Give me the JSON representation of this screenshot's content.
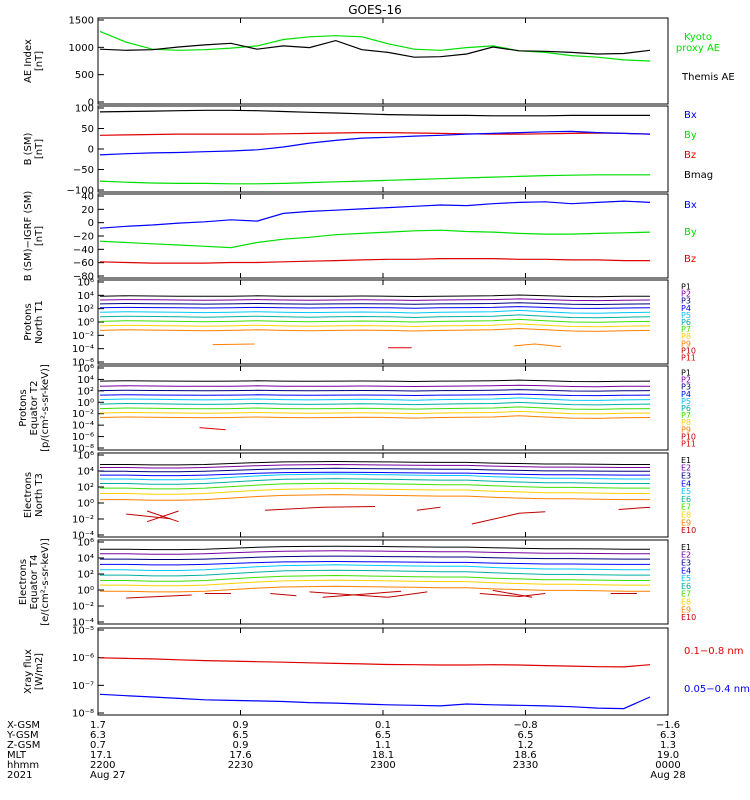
{
  "title": "GOES-16",
  "colors": {
    "black": "#000000",
    "green": "#00e000",
    "blue": "#0000ff",
    "red": "#e00000",
    "purple": "#7a00a0",
    "navy": "#000080",
    "cyan": "#00c8ff",
    "teal": "#00b0a0",
    "lime": "#40e000",
    "yellow": "#ffd000",
    "orange": "#ff8000",
    "darkred": "#c00000"
  },
  "chart_data": [
    {
      "type": "line",
      "id": "ae",
      "ylabel": "AE Index\n[nT]",
      "yticks": [
        "1500",
        "1000",
        "500",
        "0"
      ],
      "ylim": [
        0,
        1600
      ],
      "legend": [
        "Kyoto\nproxy AE",
        "Themis AE"
      ],
      "series": [
        {
          "name": "Kyoto proxy AE",
          "color": "green",
          "values": [
            1350,
            1150,
            1020,
            1000,
            1010,
            1040,
            1080,
            1200,
            1250,
            1270,
            1250,
            1120,
            1020,
            1000,
            1050,
            1080,
            990,
            960,
            900,
            870,
            820,
            800
          ]
        },
        {
          "name": "Themis AE",
          "color": "black",
          "values": [
            1020,
            1000,
            1010,
            1060,
            1100,
            1130,
            1020,
            1080,
            1050,
            1180,
            1010,
            960,
            870,
            880,
            930,
            1060,
            990,
            980,
            960,
            930,
            940,
            1000
          ]
        }
      ]
    },
    {
      "type": "line",
      "id": "bsm",
      "ylabel": "B (SM)\n[nT]",
      "yticks": [
        "100",
        "50",
        "0",
        "−50",
        "−100"
      ],
      "ylim": [
        -110,
        110
      ],
      "legend": [
        "Bx",
        "By",
        "Bz",
        "Bmag"
      ],
      "series": [
        {
          "name": "Bmag",
          "color": "black",
          "values": [
            95,
            96,
            97,
            98,
            99,
            99,
            98,
            96,
            94,
            92,
            90,
            88,
            87,
            86,
            86,
            85,
            85,
            85,
            86,
            86,
            86,
            86
          ]
        },
        {
          "name": "Bz",
          "color": "red",
          "values": [
            35,
            36,
            37,
            38,
            38,
            38,
            38,
            39,
            40,
            41,
            42,
            42,
            41,
            40,
            39,
            38,
            38,
            39,
            40,
            41,
            40,
            38
          ]
        },
        {
          "name": "Bx",
          "color": "blue",
          "values": [
            -15,
            -12,
            -10,
            -9,
            -7,
            -5,
            -2,
            5,
            15,
            22,
            28,
            30,
            33,
            35,
            38,
            40,
            42,
            44,
            45,
            42,
            40,
            38
          ]
        },
        {
          "name": "By",
          "color": "green",
          "values": [
            -82,
            -85,
            -87,
            -88,
            -88,
            -89,
            -89,
            -88,
            -86,
            -84,
            -82,
            -80,
            -78,
            -76,
            -74,
            -72,
            -70,
            -68,
            -67,
            -66,
            -66,
            -66
          ]
        }
      ]
    },
    {
      "type": "line",
      "id": "bigrf",
      "ylabel": "B (SM)−IGRF (SM)\n[nT]",
      "yticks": [
        "40",
        "20",
        "0",
        "−20",
        "−40",
        "−60",
        "−80"
      ],
      "ylim": [
        -85,
        45
      ],
      "legend": [
        "Bx",
        "By",
        "Bz"
      ],
      "series": [
        {
          "name": "Bx",
          "color": "blue",
          "values": [
            -8,
            -5,
            -3,
            0,
            2,
            5,
            3,
            15,
            18,
            20,
            22,
            24,
            26,
            28,
            27,
            30,
            32,
            33,
            30,
            32,
            34,
            32
          ]
        },
        {
          "name": "By",
          "color": "green",
          "values": [
            -28,
            -30,
            -32,
            -34,
            -36,
            -38,
            -30,
            -25,
            -22,
            -18,
            -16,
            -14,
            -12,
            -11,
            -13,
            -14,
            -16,
            -17,
            -17,
            -16,
            -15,
            -14
          ]
        },
        {
          "name": "Bz",
          "color": "red",
          "values": [
            -60,
            -61,
            -62,
            -62,
            -62,
            -61,
            -61,
            -60,
            -59,
            -58,
            -57,
            -56,
            -56,
            -55,
            -55,
            -55,
            -56,
            -56,
            -57,
            -57,
            -58,
            -58
          ]
        }
      ]
    },
    {
      "type": "line",
      "id": "pn",
      "scale": "log",
      "ylabel": "Protons\nNorth T1",
      "yticks": [
        "10⁶",
        "10⁴",
        "10²",
        "10⁰",
        "10⁻²",
        "10⁻⁴",
        "10⁻⁶"
      ],
      "ylim": [
        -7,
        6
      ],
      "legend": [
        "P1",
        "P2",
        "P3",
        "P4",
        "P5",
        "P6",
        "P7",
        "P8",
        "P9",
        "P10",
        "P11"
      ],
      "legend_colors": [
        "black",
        "purple",
        "navy",
        "blue",
        "cyan",
        "teal",
        "lime",
        "yellow",
        "orange",
        "darkred",
        "red"
      ],
      "base": [
        3.5,
        2.9,
        2.3,
        1.7,
        1.0,
        0.3,
        -0.4,
        -1.1,
        -1.8
      ],
      "variation": [
        0,
        0.1,
        0.05,
        0,
        -0.05,
        0,
        0.1,
        0,
        -0.05,
        0,
        0.05,
        0,
        -0.1,
        0,
        0.05,
        0.1,
        0.3,
        0.1,
        -0.1,
        -0.15,
        -0.05,
        0
      ],
      "fragments": [
        {
          "color": "orange",
          "points": [
            [
              4.3,
              -4.0
            ],
            [
              5.9,
              -3.9
            ]
          ]
        },
        {
          "color": "red",
          "points": [
            [
              11.0,
              -4.5
            ],
            [
              11.9,
              -4.5
            ]
          ]
        },
        {
          "color": "orange",
          "points": [
            [
              15.8,
              -4.2
            ],
            [
              16.6,
              -3.9
            ],
            [
              17.6,
              -4.3
            ]
          ]
        }
      ]
    },
    {
      "type": "line",
      "id": "pe",
      "scale": "log",
      "ylabel": "Protons\nEquator T2\n[p/(cm²-s-sr-keV)]",
      "yticks": [
        "10⁶",
        "10⁴",
        "10²",
        "10⁰",
        "10⁻²",
        "10⁻⁴",
        "10⁻⁶",
        "10⁻⁸"
      ],
      "ylim": [
        -9,
        6
      ],
      "legend": [
        "P1",
        "P2",
        "P3",
        "P4",
        "P5",
        "P6",
        "P7",
        "P8",
        "P9",
        "P10",
        "P11"
      ],
      "legend_colors": [
        "black",
        "purple",
        "navy",
        "blue",
        "cyan",
        "teal",
        "lime",
        "yellow",
        "orange",
        "darkred",
        "red"
      ],
      "base": [
        3.3,
        2.4,
        1.6,
        0.8,
        0.0,
        -0.8,
        -1.6,
        -2.4,
        -3.2
      ],
      "variation": [
        0,
        0.1,
        0.05,
        0,
        -0.05,
        0,
        0.1,
        0,
        -0.05,
        0,
        0.05,
        0,
        -0.1,
        0,
        0.05,
        0.1,
        0.3,
        0.1,
        -0.1,
        -0.15,
        -0.05,
        0
      ],
      "fragments": [
        {
          "color": "red",
          "points": [
            [
              3.8,
              -5.0
            ],
            [
              4.8,
              -5.4
            ]
          ]
        }
      ]
    },
    {
      "type": "line",
      "id": "en",
      "scale": "log",
      "ylabel": "Electrons\nNorth T3",
      "yticks": [
        "10⁶",
        "10⁴",
        "10²",
        "10⁰",
        "10⁻²",
        "10⁻⁴"
      ],
      "ylim": [
        -5,
        6
      ],
      "legend": [
        "E1",
        "E2",
        "E3",
        "E4",
        "E5",
        "E6",
        "E7",
        "E8",
        "E9",
        "E10"
      ],
      "legend_colors": [
        "black",
        "purple",
        "navy",
        "blue",
        "cyan",
        "teal",
        "lime",
        "yellow",
        "orange",
        "darkred"
      ],
      "base": [
        4.5,
        4.1,
        3.6,
        3.1,
        2.6,
        2.0,
        1.4,
        0.7,
        -0.1
      ],
      "variation": [
        0,
        0,
        -0.1,
        -0.1,
        0,
        0.2,
        0.4,
        0.55,
        0.6,
        0.65,
        0.6,
        0.55,
        0.5,
        0.45,
        0.45,
        0.3,
        0.2,
        0.1,
        0.1,
        0.05,
        0,
        0
      ],
      "fragments": [
        {
          "color": "darkred",
          "points": [
            [
              1.0,
              -2.0
            ],
            [
              2.7,
              -2.6
            ]
          ]
        },
        {
          "color": "darkred",
          "points": [
            [
              1.8,
              -1.6
            ],
            [
              3.0,
              -3.0
            ]
          ]
        },
        {
          "color": "darkred",
          "points": [
            [
              1.8,
              -3.0
            ],
            [
              3.0,
              -1.6
            ]
          ]
        },
        {
          "color": "darkred",
          "points": [
            [
              6.3,
              -1.5
            ],
            [
              8.5,
              -1.1
            ],
            [
              10.5,
              -1.0
            ]
          ]
        },
        {
          "color": "darkred",
          "points": [
            [
              12.1,
              -1.5
            ],
            [
              13.0,
              -1.1
            ]
          ]
        },
        {
          "color": "darkred",
          "points": [
            [
              14.2,
              -3.3
            ],
            [
              16.0,
              -1.9
            ],
            [
              17.0,
              -1.7
            ]
          ]
        },
        {
          "color": "darkred",
          "points": [
            [
              19.8,
              -1.4
            ],
            [
              21.0,
              -1.1
            ]
          ]
        }
      ]
    },
    {
      "type": "line",
      "id": "ee",
      "scale": "log",
      "ylabel": "Electrons\nEquator T4\n[e/(cm²-s-sr-keV)]",
      "yticks": [
        "10⁶",
        "10⁴",
        "10²",
        "10⁰",
        "10⁻²",
        "10⁻⁴"
      ],
      "ylim": [
        -5,
        6
      ],
      "legend": [
        "E1",
        "E2",
        "E3",
        "E4",
        "E5",
        "E6",
        "E7",
        "E8",
        "E9",
        "E10"
      ],
      "legend_colors": [
        "black",
        "purple",
        "navy",
        "blue",
        "cyan",
        "teal",
        "lime",
        "yellow",
        "orange",
        "darkred"
      ],
      "base": [
        4.8,
        4.2,
        3.5,
        2.8,
        2.1,
        1.4,
        0.7,
        0.1,
        -0.7
      ],
      "variation": [
        0,
        0,
        -0.1,
        -0.1,
        0,
        0.2,
        0.4,
        0.55,
        0.6,
        0.65,
        0.6,
        0.55,
        0.5,
        0.45,
        0.45,
        0.3,
        0.2,
        0.1,
        0.1,
        0.05,
        0,
        0
      ],
      "fragments": [
        {
          "color": "darkred",
          "points": [
            [
              1.0,
              -1.6
            ],
            [
              3.5,
              -1.2
            ]
          ]
        },
        {
          "color": "darkred",
          "points": [
            [
              4.0,
              -1.0
            ],
            [
              5.0,
              -1.0
            ]
          ]
        },
        {
          "color": "darkred",
          "points": [
            [
              6.5,
              -1.0
            ],
            [
              7.5,
              -1.3
            ]
          ]
        },
        {
          "color": "darkred",
          "points": [
            [
              8.0,
              -0.8
            ],
            [
              11.0,
              -1.5
            ],
            [
              12.5,
              -0.8
            ]
          ]
        },
        {
          "color": "darkred",
          "points": [
            [
              8.5,
              -1.5
            ],
            [
              11.5,
              -0.7
            ]
          ]
        },
        {
          "color": "darkred",
          "points": [
            [
              14.5,
              -1.0
            ],
            [
              16.0,
              -1.4
            ],
            [
              17.0,
              -1.0
            ]
          ]
        },
        {
          "color": "darkred",
          "points": [
            [
              15.0,
              -0.6
            ],
            [
              16.5,
              -1.5
            ]
          ]
        },
        {
          "color": "darkred",
          "points": [
            [
              19.5,
              -1.0
            ],
            [
              20.5,
              -1.0
            ]
          ]
        }
      ]
    },
    {
      "type": "line",
      "id": "xray",
      "scale": "log",
      "ylabel": "Xray flux\n[W/m2]",
      "yticks": [
        "10⁻⁵",
        "10⁻⁶",
        "10⁻⁷",
        "10⁻⁸"
      ],
      "ylim": [
        -8.15,
        -5
      ],
      "legend": [
        "0.1−0.8 nm",
        "0.05−0.4 nm"
      ],
      "series": [
        {
          "name": "0.1−0.8 nm",
          "color": "red",
          "values": [
            -6.08,
            -6.1,
            -6.12,
            -6.15,
            -6.18,
            -6.2,
            -6.22,
            -6.24,
            -6.26,
            -6.28,
            -6.3,
            -6.32,
            -6.33,
            -6.34,
            -6.34,
            -6.33,
            -6.34,
            -6.36,
            -6.38,
            -6.4,
            -6.41,
            -6.33
          ]
        },
        {
          "name": "0.05−0.4 nm",
          "color": "blue",
          "values": [
            -7.4,
            -7.45,
            -7.5,
            -7.55,
            -7.6,
            -7.62,
            -7.64,
            -7.66,
            -7.7,
            -7.72,
            -7.75,
            -7.78,
            -7.8,
            -7.82,
            -7.75,
            -7.78,
            -7.8,
            -7.82,
            -7.85,
            -7.9,
            -7.92,
            -7.5
          ]
        }
      ]
    }
  ],
  "xaxis": {
    "row_labels": [
      "X-GSM",
      "Y-GSM",
      "Z-GSM",
      "MLT",
      "hhmm",
      "2021"
    ],
    "columns": [
      {
        "values": [
          "1.7",
          "6.3",
          "0.7",
          "17.1",
          "2200",
          "Aug 27"
        ]
      },
      {
        "values": [
          "0.9",
          "6.5",
          "0.9",
          "17.6",
          "2230",
          ""
        ]
      },
      {
        "values": [
          "0.1",
          "6.5",
          "1.1",
          "18.1",
          "2300",
          ""
        ]
      },
      {
        "values": [
          "−0.8",
          "6.5",
          "1.2",
          "18.6",
          "2330",
          ""
        ]
      },
      {
        "values": [
          "−1.6",
          "6.3",
          "1.3",
          "19.0",
          "0000",
          "Aug 28"
        ]
      }
    ]
  }
}
